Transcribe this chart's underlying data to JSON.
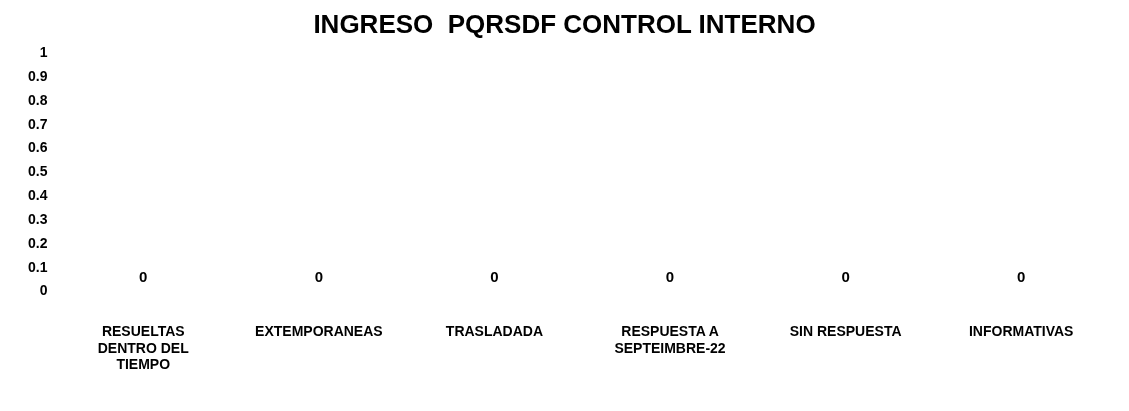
{
  "chart_data": {
    "type": "bar",
    "title": "INGRESO  PQRSDF CONTROL INTERNO",
    "categories": [
      "RESUELTAS DENTRO DEL TIEMPO",
      "EXTEMPORANEAS",
      "TRASLADADA",
      "RESPUESTA A SEPTEIMBRE-22",
      "SIN RESPUESTA",
      "INFORMATIVAS"
    ],
    "values": [
      0,
      0,
      0,
      0,
      0,
      0
    ],
    "ylim": [
      0,
      1
    ],
    "yticks": [
      0,
      0.1,
      0.2,
      0.3,
      0.4,
      0.5,
      0.6,
      0.7,
      0.8,
      0.9,
      1
    ],
    "grid": false,
    "data_labels": true
  }
}
